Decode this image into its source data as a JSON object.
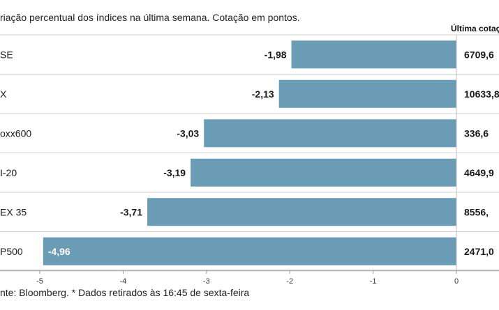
{
  "subtitle": "riação percentual dos índices na última semana. Cotação em pontos.",
  "last_column_header": "Última cotaç",
  "footer": "nte: Bloomberg.  * Dados retirados às 16:45 de sexta-feira",
  "colors": {
    "bar": "#6b9cb6",
    "grid": "#cfcfcf",
    "text": "#1a1a1a"
  },
  "chart_data": {
    "type": "bar",
    "orientation": "horizontal",
    "categories": [
      "SE",
      "X",
      "oxx600",
      "I-20",
      "EX 35",
      "P500"
    ],
    "values": [
      -1.98,
      -2.13,
      -3.03,
      -3.19,
      -3.71,
      -4.96
    ],
    "value_labels": [
      "-1,98",
      "-2,13",
      "-3,03",
      "-3,19",
      "-3,71",
      "-4,96"
    ],
    "last_quote": [
      "6709,6",
      "10633,8",
      "336,6",
      "4649,9",
      "8556,",
      "2471,0"
    ],
    "xlim": [
      -5,
      0
    ],
    "xticks": [
      -5,
      -4,
      -3,
      -2,
      -1,
      0
    ],
    "xtick_labels": [
      "-5",
      "-4",
      "-3",
      "-2",
      "-1",
      "0"
    ]
  }
}
